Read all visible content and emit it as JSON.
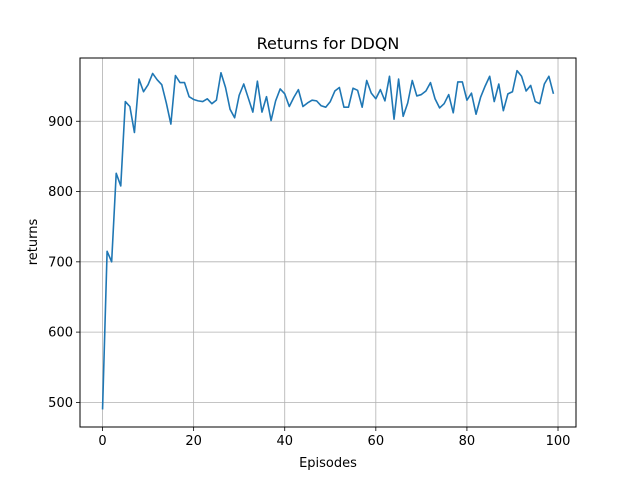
{
  "chart_data": {
    "type": "line",
    "title": "Returns for DDQN",
    "xlabel": "Episodes",
    "ylabel": "returns",
    "grid": true,
    "xlim": [
      -4.95,
      103.95
    ],
    "ylim": [
      465,
      990
    ],
    "xticks": [
      0,
      20,
      40,
      60,
      80,
      100
    ],
    "yticks": [
      500,
      600,
      700,
      800,
      900
    ],
    "series": [
      {
        "color": "#1f77b4",
        "x": [
          0,
          1,
          2,
          3,
          4,
          5,
          6,
          7,
          8,
          9,
          10,
          11,
          12,
          13,
          14,
          15,
          16,
          17,
          18,
          19,
          20,
          21,
          22,
          23,
          24,
          25,
          26,
          27,
          28,
          29,
          30,
          31,
          32,
          33,
          34,
          35,
          36,
          37,
          38,
          39,
          40,
          41,
          42,
          43,
          44,
          45,
          46,
          47,
          48,
          49,
          50,
          51,
          52,
          53,
          54,
          55,
          56,
          57,
          58,
          59,
          60,
          61,
          62,
          63,
          64,
          65,
          66,
          67,
          68,
          69,
          70,
          71,
          72,
          73,
          74,
          75,
          76,
          77,
          78,
          79,
          80,
          81,
          82,
          83,
          84,
          85,
          86,
          87,
          88,
          89,
          90,
          91,
          92,
          93,
          94,
          95,
          96,
          97,
          98,
          99
        ],
        "values": [
          490,
          715,
          700,
          826,
          808,
          928,
          921,
          884,
          960,
          942,
          952,
          968,
          959,
          952,
          926,
          896,
          965,
          955,
          955,
          935,
          931,
          929,
          928,
          932,
          925,
          930,
          969,
          948,
          917,
          905,
          937,
          953,
          933,
          913,
          957,
          913,
          935,
          901,
          929,
          946,
          939,
          921,
          934,
          945,
          921,
          926,
          930,
          929,
          922,
          920,
          928,
          943,
          948,
          920,
          920,
          947,
          944,
          920,
          958,
          940,
          932,
          945,
          929,
          964,
          903,
          960,
          907,
          926,
          958,
          936,
          938,
          943,
          955,
          932,
          919,
          925,
          938,
          912,
          956,
          956,
          930,
          940,
          910,
          934,
          950,
          964,
          928,
          953,
          915,
          939,
          942,
          972,
          964,
          943,
          951,
          928,
          925,
          953,
          964,
          939
        ]
      }
    ]
  }
}
